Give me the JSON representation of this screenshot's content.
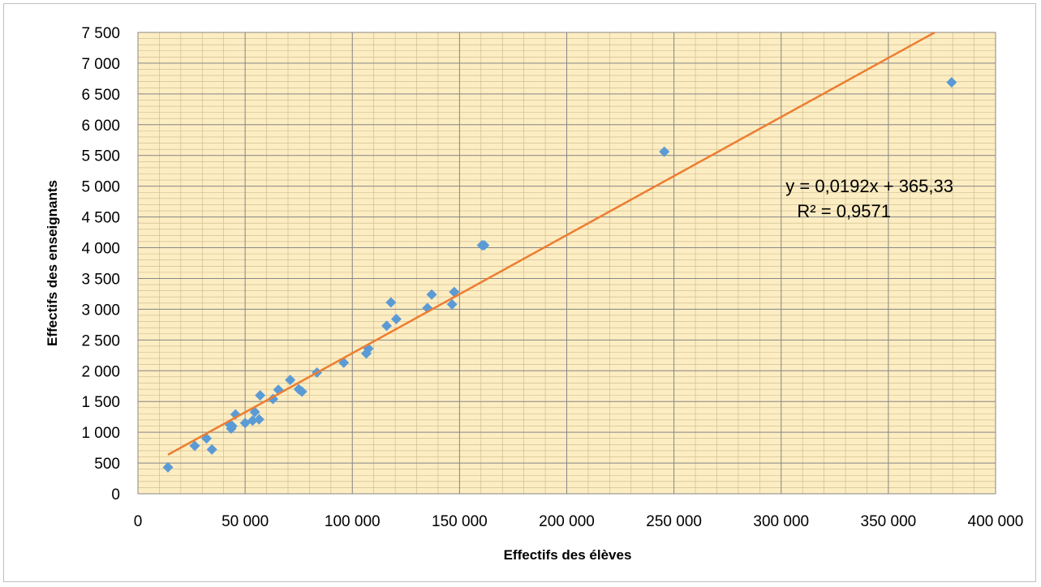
{
  "chart_data": {
    "type": "scatter",
    "title": "",
    "xlabel": "Effectifs des élèves",
    "ylabel": "Effectifs des enseignants",
    "xlim": [
      0,
      400000
    ],
    "ylim": [
      0,
      7500
    ],
    "x_ticks": [
      0,
      50000,
      100000,
      150000,
      200000,
      250000,
      300000,
      350000,
      400000
    ],
    "x_tick_labels": [
      "0",
      "50 000",
      "100 000",
      "150 000",
      "200 000",
      "250 000",
      "300 000",
      "350 000",
      "400 000"
    ],
    "y_ticks": [
      0,
      500,
      1000,
      1500,
      2000,
      2500,
      3000,
      3500,
      4000,
      4500,
      5000,
      5500,
      6000,
      6500,
      7000,
      7500
    ],
    "y_tick_labels": [
      "0",
      "500",
      "1 000",
      "1 500",
      "2 000",
      "2 500",
      "3 000",
      "3 500",
      "4 000",
      "4 500",
      "5 000",
      "5 500",
      "6 000",
      "6 500",
      "7 000",
      "7 500"
    ],
    "grid": true,
    "legend": "none",
    "series": [
      {
        "points": [
          [
            14000,
            430
          ],
          [
            26500,
            780
          ],
          [
            32000,
            900
          ],
          [
            34500,
            720
          ],
          [
            43000,
            1120
          ],
          [
            43500,
            1060
          ],
          [
            44000,
            1100
          ],
          [
            45500,
            1290
          ],
          [
            50000,
            1150
          ],
          [
            53500,
            1190
          ],
          [
            54500,
            1330
          ],
          [
            56500,
            1210
          ],
          [
            57000,
            1600
          ],
          [
            63000,
            1540
          ],
          [
            65500,
            1690
          ],
          [
            71000,
            1850
          ],
          [
            75000,
            1700
          ],
          [
            76500,
            1660
          ],
          [
            83500,
            1970
          ],
          [
            96000,
            2130
          ],
          [
            106500,
            2280
          ],
          [
            107500,
            2360
          ],
          [
            116000,
            2730
          ],
          [
            118000,
            3110
          ],
          [
            120500,
            2840
          ],
          [
            135000,
            3020
          ],
          [
            137000,
            3240
          ],
          [
            146500,
            3080
          ],
          [
            147500,
            3280
          ],
          [
            160500,
            4040
          ],
          [
            161500,
            4040
          ],
          [
            245500,
            5560
          ],
          [
            379500,
            6690
          ]
        ]
      }
    ],
    "trendline": {
      "slope": 0.0192,
      "intercept": 365.33,
      "x_range": [
        14000,
        379500
      ],
      "equation_label": "y = 0,0192x + 365,33",
      "r2_label": "R² = 0,9571"
    },
    "colors": {
      "points": "#5b9bd5",
      "trendline": "#ed7d31",
      "plot_background": "#fdedc2",
      "minor_grid": "#c9b78a",
      "major_grid": "#878787"
    }
  }
}
